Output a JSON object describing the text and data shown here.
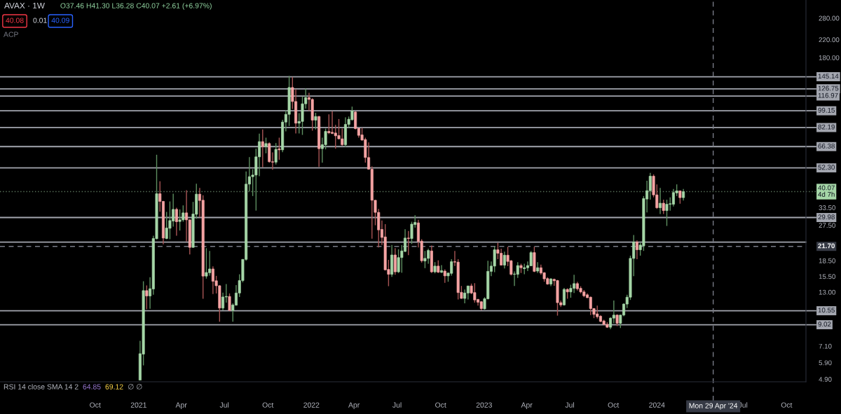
{
  "chart_data": {
    "type": "candlestick",
    "title": "AVAX · 1W",
    "subtitle": "O37.46 H41.30 L36.28 C40.07 +2.61 (+6.97%)",
    "x": [
      "2021-01-04",
      "2021-01-11",
      "2021-01-18",
      "2021-01-25",
      "2021-02-01",
      "2021-02-08",
      "2021-02-15",
      "2021-02-22",
      "2021-03-01",
      "2021-03-08",
      "2021-03-15",
      "2021-03-22",
      "2021-03-29",
      "2021-04-05",
      "2021-04-12",
      "2021-04-19",
      "2021-04-26",
      "2021-05-03",
      "2021-05-10",
      "2021-05-17",
      "2021-05-24",
      "2021-05-31",
      "2021-06-07",
      "2021-06-14",
      "2021-06-21",
      "2021-06-28",
      "2021-07-05",
      "2021-07-12",
      "2021-07-19",
      "2021-07-26",
      "2021-08-02",
      "2021-08-09",
      "2021-08-16",
      "2021-08-23",
      "2021-08-30",
      "2021-09-06",
      "2021-09-13",
      "2021-09-20",
      "2021-09-27",
      "2021-10-04",
      "2021-10-11",
      "2021-10-18",
      "2021-10-25",
      "2021-11-01",
      "2021-11-08",
      "2021-11-15",
      "2021-11-22",
      "2021-11-29",
      "2021-12-06",
      "2021-12-13",
      "2021-12-20",
      "2021-12-27",
      "2022-01-03",
      "2022-01-10",
      "2022-01-17",
      "2022-01-24",
      "2022-01-31",
      "2022-02-07",
      "2022-02-14",
      "2022-02-21",
      "2022-02-28",
      "2022-03-07",
      "2022-03-14",
      "2022-03-21",
      "2022-03-28",
      "2022-04-04",
      "2022-04-11",
      "2022-04-18",
      "2022-04-25",
      "2022-05-02",
      "2022-05-09",
      "2022-05-16",
      "2022-05-23",
      "2022-05-30",
      "2022-06-06",
      "2022-06-13",
      "2022-06-20",
      "2022-06-27",
      "2022-07-04",
      "2022-07-11",
      "2022-07-18",
      "2022-07-25",
      "2022-08-01",
      "2022-08-08",
      "2022-08-15",
      "2022-08-22",
      "2022-08-29",
      "2022-09-05",
      "2022-09-12",
      "2022-09-19",
      "2022-09-26",
      "2022-10-03",
      "2022-10-10",
      "2022-10-17",
      "2022-10-24",
      "2022-10-31",
      "2022-11-07",
      "2022-11-14",
      "2022-11-21",
      "2022-11-28",
      "2022-12-05",
      "2022-12-12",
      "2022-12-19",
      "2022-12-26",
      "2023-01-02",
      "2023-01-09",
      "2023-01-16",
      "2023-01-23",
      "2023-01-30",
      "2023-02-06",
      "2023-02-13",
      "2023-02-20",
      "2023-02-27",
      "2023-03-06",
      "2023-03-13",
      "2023-03-20",
      "2023-03-27",
      "2023-04-03",
      "2023-04-10",
      "2023-04-17",
      "2023-04-24",
      "2023-05-01",
      "2023-05-08",
      "2023-05-15",
      "2023-05-22",
      "2023-05-29",
      "2023-06-05",
      "2023-06-12",
      "2023-06-19",
      "2023-06-26",
      "2023-07-03",
      "2023-07-10",
      "2023-07-17",
      "2023-07-24",
      "2023-07-31",
      "2023-08-07",
      "2023-08-14",
      "2023-08-21",
      "2023-08-28",
      "2023-09-04",
      "2023-09-11",
      "2023-09-18",
      "2023-09-25",
      "2023-10-02",
      "2023-10-09",
      "2023-10-16",
      "2023-10-23",
      "2023-10-30",
      "2023-11-06",
      "2023-11-13",
      "2023-11-20",
      "2023-11-27",
      "2023-12-04",
      "2023-12-11",
      "2023-12-18",
      "2023-12-25",
      "2024-01-01",
      "2024-01-08",
      "2024-01-15",
      "2024-01-22",
      "2024-01-29",
      "2024-02-05",
      "2024-02-12",
      "2024-02-19",
      "2024-02-26"
    ],
    "ohlc": [
      [
        4.85,
        7.53,
        4.85,
        6.52
      ],
      [
        6.49,
        14.68,
        5.72,
        13.22
      ],
      [
        13.22,
        14.01,
        10.73,
        12.45
      ],
      [
        12.45,
        15.35,
        10.78,
        13.5
      ],
      [
        13.47,
        24.45,
        12.61,
        23.7
      ],
      [
        23.64,
        60.59,
        23.5,
        39.15
      ],
      [
        39.15,
        44.98,
        32.0,
        35.91
      ],
      [
        35.91,
        36.1,
        22.19,
        23.82
      ],
      [
        23.7,
        31.92,
        23.52,
        26.65
      ],
      [
        26.58,
        35.91,
        23.52,
        28.98
      ],
      [
        28.83,
        39.15,
        27.07,
        32.85
      ],
      [
        32.85,
        33.46,
        24.45,
        28.6
      ],
      [
        28.68,
        32.85,
        25.9,
        29.21
      ],
      [
        29.21,
        34.35,
        28.6,
        31.59
      ],
      [
        31.59,
        40.72,
        22.9,
        29.21
      ],
      [
        29.21,
        29.3,
        19.83,
        21.45
      ],
      [
        21.45,
        35.72,
        21.4,
        31.17
      ],
      [
        31.09,
        43.81,
        29.59,
        38.96
      ],
      [
        38.96,
        41.79,
        30.04,
        36.28
      ],
      [
        36.38,
        38.45,
        12.07,
        15.55
      ],
      [
        15.55,
        21.27,
        15.12,
        16.19
      ],
      [
        16.15,
        20.62,
        15.64,
        16.85
      ],
      [
        16.85,
        17.33,
        12.71,
        14.68
      ],
      [
        14.76,
        15.59,
        12.81,
        13.96
      ],
      [
        13.96,
        14.05,
        9.33,
        10.87
      ],
      [
        10.87,
        12.93,
        10.59,
        12.31
      ],
      [
        12.31,
        14.23,
        11.55,
        12.38
      ],
      [
        12.38,
        12.81,
        10.5,
        10.59
      ],
      [
        10.59,
        11.46,
        9.33,
        11.26
      ],
      [
        11.23,
        14.05,
        11.17,
        12.87
      ],
      [
        12.87,
        15.87,
        12.31,
        14.8
      ],
      [
        14.8,
        18.81,
        14.5,
        18.76
      ],
      [
        18.76,
        50.2,
        18.47,
        43.59
      ],
      [
        43.59,
        59.03,
        40.19,
        47.39
      ],
      [
        47.39,
        51.53,
        38.14,
        48.26
      ],
      [
        48.26,
        64.85,
        32.4,
        59.18
      ],
      [
        59.18,
        76.69,
        47.65,
        70.16
      ],
      [
        70.16,
        80.38,
        52.62,
        66.41
      ],
      [
        66.41,
        73.36,
        61.55,
        68.7
      ],
      [
        68.7,
        69.61,
        55.45,
        56.03
      ],
      [
        56.03,
        62.19,
        51.26,
        55.74
      ],
      [
        55.74,
        69.06,
        54.31,
        64.34
      ],
      [
        64.68,
        73.36,
        57.21,
        64.01
      ],
      [
        64.01,
        89.7,
        62.35,
        87.35
      ],
      [
        87.35,
        99.62,
        78.7,
        95.27
      ],
      [
        95.27,
        146.5,
        83.6,
        128.7
      ],
      [
        128.7,
        144.8,
        101.2,
        110.0
      ],
      [
        110.0,
        126.4,
        76.9,
        86.27
      ],
      [
        86.27,
        96.53,
        76.9,
        88.0
      ],
      [
        88.0,
        116.5,
        75.66,
        107.2
      ],
      [
        107.2,
        127.1,
        101.7,
        115.0
      ],
      [
        115.0,
        121.2,
        99.1,
        112.6
      ],
      [
        112.6,
        114.0,
        79.35,
        89.24
      ],
      [
        89.24,
        97.0,
        80.4,
        93.0
      ],
      [
        93.0,
        93.5,
        52.88,
        64.85
      ],
      [
        64.85,
        73.36,
        55.45,
        67.8
      ],
      [
        67.8,
        81.2,
        64.34,
        78.7
      ],
      [
        78.7,
        95.27,
        76.3,
        77.5
      ],
      [
        77.9,
        98.6,
        76.3,
        76.9
      ],
      [
        77.3,
        84.7,
        64.85,
        74.9
      ],
      [
        75.1,
        90.4,
        72.0,
        72.4
      ],
      [
        72.4,
        81.2,
        66.9,
        67.8
      ],
      [
        67.8,
        92.2,
        66.1,
        85.1
      ],
      [
        85.1,
        93.0,
        82.1,
        90.2
      ],
      [
        89.7,
        103.9,
        88.8,
        99.1
      ],
      [
        97.8,
        98.6,
        80.4,
        81.2
      ],
      [
        81.6,
        81.9,
        73.36,
        75.3
      ],
      [
        75.66,
        81.9,
        70.9,
        71.4
      ],
      [
        71.8,
        73.36,
        55.45,
        58.73
      ],
      [
        58.73,
        69.61,
        51.26,
        51.53
      ],
      [
        51.53,
        53.18,
        23.64,
        36.38
      ],
      [
        36.38,
        36.5,
        27.49,
        31.76
      ],
      [
        31.76,
        33.04,
        21.45,
        26.1
      ],
      [
        26.24,
        28.98,
        22.02,
        23.99
      ],
      [
        24.12,
        27.84,
        16.6,
        16.68
      ],
      [
        16.76,
        18.66,
        13.89,
        15.87
      ],
      [
        15.87,
        22.02,
        15.41,
        19.71
      ],
      [
        19.71,
        21.27,
        15.78,
        16.31
      ],
      [
        16.31,
        21.0,
        16.1,
        19.14
      ],
      [
        19.14,
        22.02,
        16.15,
        20.62
      ],
      [
        20.51,
        26.3,
        20.35,
        23.82
      ],
      [
        23.82,
        25.76,
        19.66,
        23.7
      ],
      [
        23.7,
        28.6,
        22.3,
        27.84
      ],
      [
        27.7,
        30.77,
        26.78,
        28.38
      ],
      [
        28.23,
        29.21,
        21.45,
        22.9
      ],
      [
        23.02,
        23.52,
        18.09,
        18.47
      ],
      [
        18.42,
        20.62,
        17.0,
        18.97
      ],
      [
        18.97,
        21.16,
        17.87,
        20.73
      ],
      [
        20.62,
        21.9,
        16.1,
        16.31
      ],
      [
        16.31,
        18.19,
        16.04,
        17.4
      ],
      [
        17.4,
        18.56,
        16.1,
        16.25
      ],
      [
        16.22,
        17.59,
        16.1,
        16.55
      ],
      [
        16.45,
        16.76,
        14.42,
        15.59
      ],
      [
        15.59,
        16.15,
        14.6,
        16.1
      ],
      [
        16.04,
        18.81,
        15.64,
        18.28
      ],
      [
        18.28,
        20.62,
        17.4,
        18.19
      ],
      [
        18.19,
        18.81,
        11.97,
        12.93
      ],
      [
        12.97,
        13.93,
        12.07,
        12.11
      ],
      [
        12.11,
        13.4,
        11.46,
        12.87
      ],
      [
        12.87,
        13.93,
        11.97,
        13.93
      ],
      [
        13.93,
        14.3,
        12.71,
        12.87
      ],
      [
        12.93,
        14.38,
        11.55,
        11.91
      ],
      [
        11.97,
        12.07,
        11.17,
        11.61
      ],
      [
        11.67,
        11.76,
        10.59,
        10.81
      ],
      [
        10.78,
        12.28,
        10.67,
        12.07
      ],
      [
        12.07,
        18.47,
        11.97,
        16.4
      ],
      [
        16.4,
        18.33,
        15.55,
        17.4
      ],
      [
        17.4,
        21.73,
        16.25,
        20.89
      ],
      [
        20.89,
        22.6,
        18.81,
        20.09
      ],
      [
        20.09,
        21.16,
        17.5,
        17.59
      ],
      [
        17.59,
        20.46,
        16.95,
        19.66
      ],
      [
        19.66,
        21.62,
        17.4,
        18.33
      ],
      [
        18.47,
        18.6,
        15.65,
        15.87
      ],
      [
        15.87,
        16.4,
        13.93,
        15.93
      ],
      [
        15.87,
        18.19,
        15.25,
        17.5
      ],
      [
        17.5,
        17.87,
        16.1,
        17.08
      ],
      [
        16.9,
        17.87,
        15.87,
        17.1
      ],
      [
        17.08,
        18.33,
        16.45,
        17.5
      ],
      [
        17.45,
        20.62,
        17.4,
        20.24
      ],
      [
        20.24,
        21.62,
        16.25,
        16.4
      ],
      [
        16.45,
        18.19,
        16.1,
        17.08
      ],
      [
        17.08,
        17.68,
        15.78,
        16.1
      ],
      [
        16.15,
        16.25,
        14.6,
        15.08
      ],
      [
        15.12,
        15.35,
        14.12,
        14.23
      ],
      [
        14.23,
        15.18,
        13.89,
        15.08
      ],
      [
        15.0,
        15.12,
        13.96,
        14.76
      ],
      [
        14.8,
        14.9,
        9.99,
        11.55
      ],
      [
        11.55,
        11.82,
        11.01,
        11.26
      ],
      [
        11.26,
        13.63,
        11.17,
        13.4
      ],
      [
        13.4,
        13.56,
        12.07,
        13.03
      ],
      [
        13.03,
        14.12,
        12.21,
        13.56
      ],
      [
        13.56,
        15.78,
        12.87,
        14.3
      ],
      [
        14.3,
        14.6,
        13.22,
        13.5
      ],
      [
        13.56,
        13.89,
        12.81,
        13.03
      ],
      [
        13.03,
        13.31,
        12.28,
        12.48
      ],
      [
        12.61,
        12.81,
        12.15,
        12.21
      ],
      [
        12.28,
        12.38,
        10.05,
        10.81
      ],
      [
        10.81,
        10.87,
        9.71,
        10.13
      ],
      [
        10.18,
        11.17,
        9.66,
        9.87
      ],
      [
        9.92,
        10.05,
        9.28,
        9.36
      ],
      [
        9.41,
        9.54,
        8.97,
        9.05
      ],
      [
        9.05,
        9.28,
        8.7,
        8.77
      ],
      [
        8.77,
        9.79,
        8.58,
        9.71
      ],
      [
        9.71,
        11.82,
        9.17,
        10.05
      ],
      [
        10.05,
        10.13,
        8.88,
        9.17
      ],
      [
        9.17,
        10.1,
        8.7,
        10.05
      ],
      [
        10.05,
        11.46,
        9.92,
        11.37
      ],
      [
        11.37,
        12.61,
        10.87,
        12.28
      ],
      [
        12.28,
        19.56,
        11.91,
        18.97
      ],
      [
        18.97,
        24.64,
        15.55,
        22.78
      ],
      [
        22.78,
        23.2,
        18.81,
        20.89
      ],
      [
        20.89,
        22.6,
        19.56,
        22.02
      ],
      [
        21.84,
        38.14,
        20.62,
        37.08
      ],
      [
        36.88,
        45.25,
        31.76,
        40.5
      ],
      [
        40.5,
        49.47,
        36.6,
        47.65
      ],
      [
        47.65,
        48.64,
        37.6,
        38.64
      ],
      [
        38.64,
        43.47,
        33.04,
        33.46
      ],
      [
        33.46,
        41.79,
        31.17,
        35.2
      ],
      [
        35.2,
        36.6,
        31.17,
        32.4
      ],
      [
        32.4,
        36.6,
        27.28,
        34.79
      ],
      [
        34.79,
        37.6,
        32.4,
        35.0
      ],
      [
        34.79,
        41.26,
        33.9,
        39.66
      ],
      [
        39.5,
        43.47,
        38.14,
        40.4
      ],
      [
        40.4,
        40.5,
        35.0,
        37.46
      ],
      [
        37.46,
        41.3,
        36.28,
        40.07
      ]
    ],
    "xlim": [
      "2020-03-14",
      "2024-11-11"
    ],
    "xticks": [
      {
        "value": "2020-10-01",
        "label": "Oct"
      },
      {
        "value": "2021-01-01",
        "label": "2021"
      },
      {
        "value": "2021-04-01",
        "label": "Apr"
      },
      {
        "value": "2021-07-01",
        "label": "Jul"
      },
      {
        "value": "2021-10-01",
        "label": "Oct"
      },
      {
        "value": "2022-01-01",
        "label": "2022"
      },
      {
        "value": "2022-04-01",
        "label": "Apr"
      },
      {
        "value": "2022-07-01",
        "label": "Jul"
      },
      {
        "value": "2022-10-01",
        "label": "Oct"
      },
      {
        "value": "2023-01-01",
        "label": "2023"
      },
      {
        "value": "2023-04-01",
        "label": "Apr"
      },
      {
        "value": "2023-07-01",
        "label": "Jul"
      },
      {
        "value": "2023-10-01",
        "label": "Oct"
      },
      {
        "value": "2024-01-01",
        "label": "2024"
      },
      {
        "value": "2024-07-01",
        "label": "Jul"
      },
      {
        "value": "2024-10-01",
        "label": "Oct"
      }
    ],
    "log": true,
    "ylim": [
      4.76,
      343
    ],
    "yticks": [
      {
        "value": 280,
        "label": "280.00"
      },
      {
        "value": 220,
        "label": "220.00"
      },
      {
        "value": 180,
        "label": "180.00"
      },
      {
        "value": 33.5,
        "label": "33.50"
      },
      {
        "value": 27.5,
        "label": "27.50"
      },
      {
        "value": 18.5,
        "label": "18.50"
      },
      {
        "value": 15.5,
        "label": "15.50"
      },
      {
        "value": 13,
        "label": "13.00"
      },
      {
        "value": 7.1,
        "label": "7.10"
      },
      {
        "value": 5.9,
        "label": "5.90"
      },
      {
        "value": 4.9,
        "label": "4.90"
      }
    ],
    "ref_lines": [
      {
        "axis": "y",
        "value": 145.14,
        "label": "145.14"
      },
      {
        "axis": "y",
        "value": 126.75,
        "label": "126.75"
      },
      {
        "axis": "y",
        "value": 116.97,
        "label": "116.97"
      },
      {
        "axis": "y",
        "value": 99.15,
        "label": "99.15"
      },
      {
        "axis": "y",
        "value": 82.19,
        "label": "82.19"
      },
      {
        "axis": "y",
        "value": 66.38,
        "label": "66.38"
      },
      {
        "axis": "y",
        "value": 52.3,
        "label": "52.30"
      },
      {
        "axis": "y",
        "value": 29.98,
        "label": "29.98"
      },
      {
        "axis": "y",
        "value": 22.77
      },
      {
        "axis": "y",
        "value": 10.55,
        "label": "10.55"
      },
      {
        "axis": "y",
        "value": 9.02,
        "label": "9.02"
      },
      {
        "axis": "y",
        "value": 40.07,
        "label": "40.07\n4d 7h",
        "color": "#a5d6a7",
        "line_style": "dotted"
      },
      {
        "axis": "y",
        "value": 21.7,
        "label": "21.70",
        "color": "#787b86",
        "line_style": "dashed"
      },
      {
        "axis": "x",
        "value": "2024-04-29",
        "label": "Mon 29 Apr '24",
        "color": "#787b86",
        "line_style": "dashed"
      }
    ],
    "annotations": [
      "40.08",
      "0.01",
      "40.09",
      "ACP",
      "RSI 14 close SMA 14 2",
      "64.85",
      "69.12",
      "∅ ∅"
    ]
  }
}
